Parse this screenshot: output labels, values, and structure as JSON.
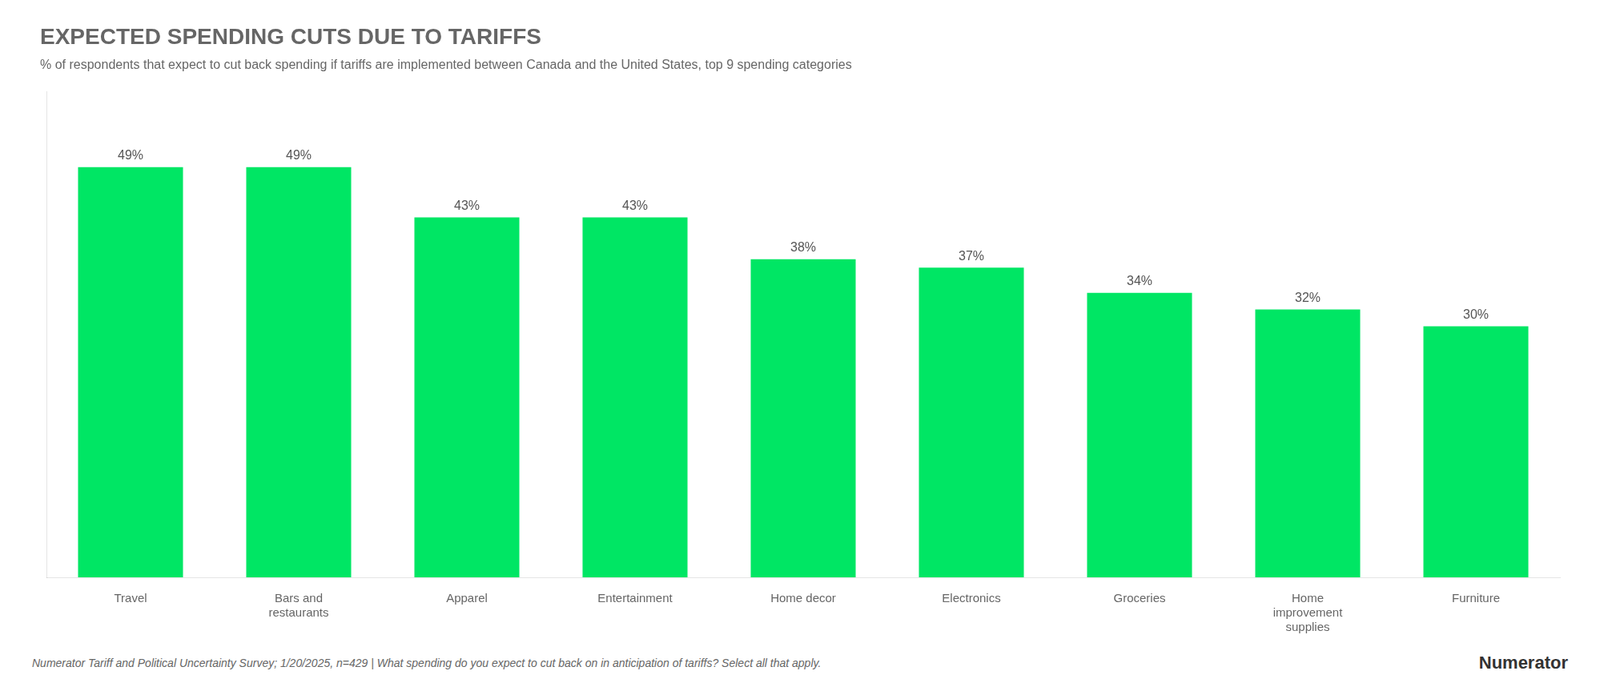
{
  "chart_data": {
    "type": "bar",
    "title": "EXPECTED SPENDING CUTS DUE TO TARIFFS",
    "subtitle": "% of respondents that expect to cut back spending if tariffs are implemented between Canada and the United States, top 9 spending categories",
    "categories": [
      "Travel",
      "Bars and\nrestaurants",
      "Apparel",
      "Entertainment",
      "Home decor",
      "Electronics",
      "Groceries",
      "Home\nimprovement\nsupplies",
      "Furniture"
    ],
    "values": [
      49,
      49,
      43,
      43,
      38,
      37,
      34,
      32,
      30
    ],
    "value_labels": [
      "49%",
      "49%",
      "43%",
      "43%",
      "38%",
      "37%",
      "34%",
      "32%",
      "30%"
    ],
    "data_labels": true,
    "color": "#00E664",
    "ylim": [
      0,
      58
    ],
    "grid": false,
    "tick_labels": "x",
    "annotations": [
      "Numerator Tariff and Political Uncertainty Survey; 1/20/2025, n=429 | What spending do you expect to cut back on in anticipation of tariffs? Select all that apply.",
      "Numerator"
    ]
  }
}
